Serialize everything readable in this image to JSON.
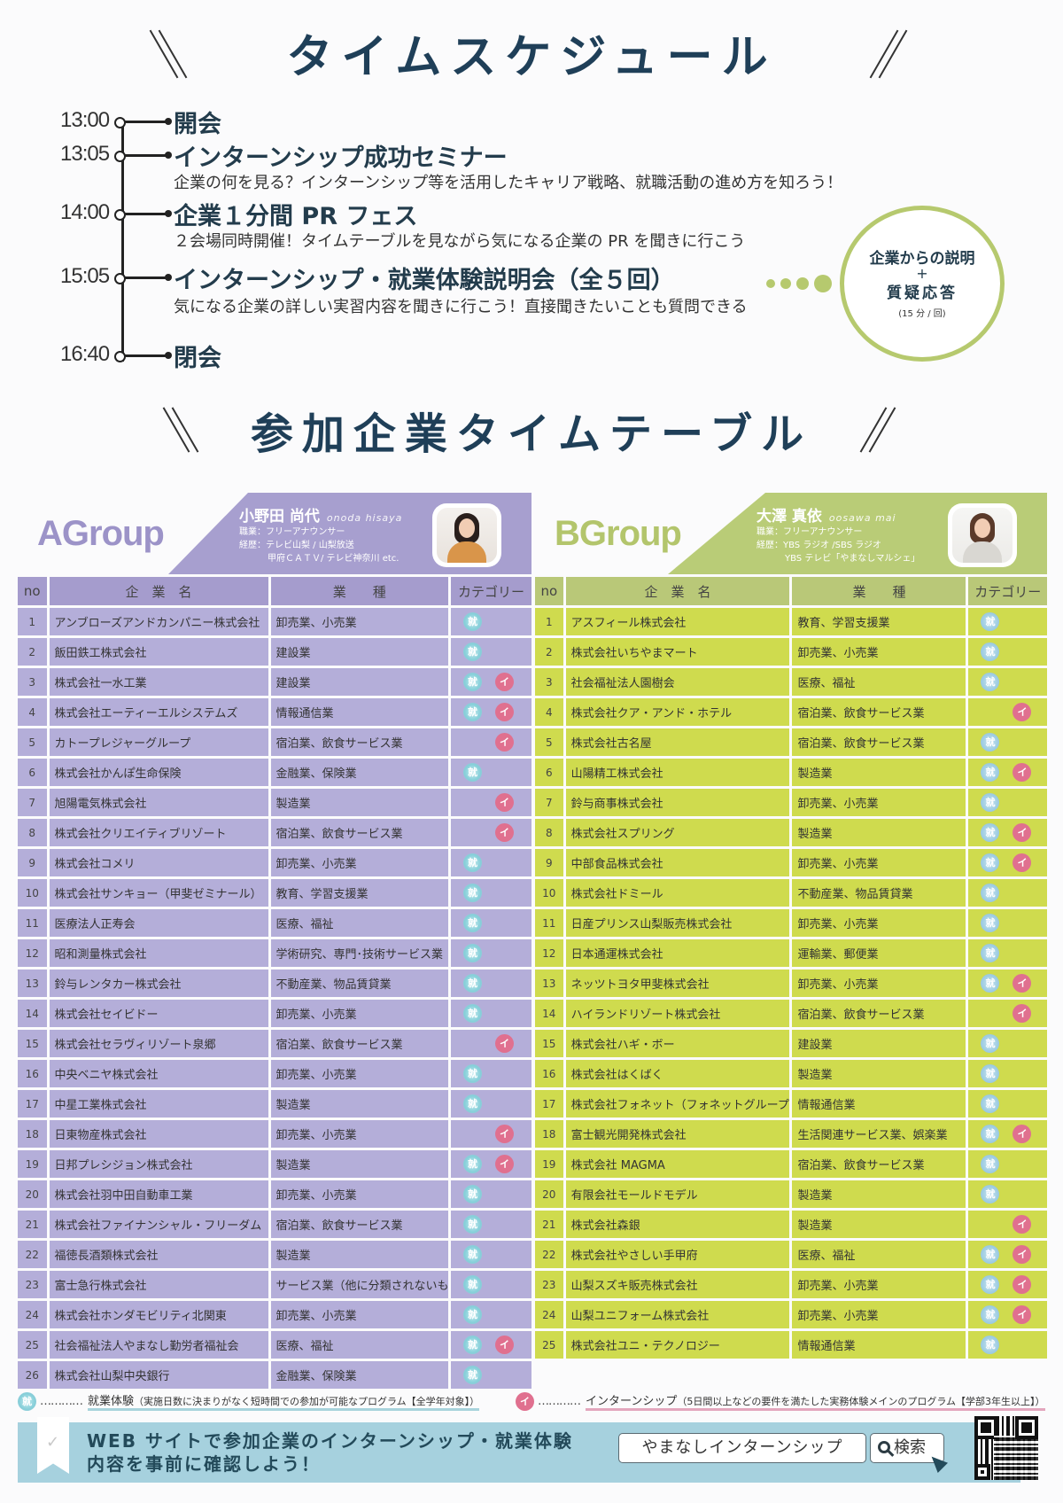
{
  "schedule_title": "タイムスケジュール",
  "schedule": [
    {
      "time": "13:00",
      "title": "開会",
      "desc": "",
      "highlight": ""
    },
    {
      "time": "13:05",
      "title": "インターンシップ成功セミナー",
      "desc": "企業の何を見る？インターンシップ等を活用したキャリア戦略、就職活動の進め方を知ろう！",
      "highlight": "blue"
    },
    {
      "time": "14:00",
      "title": "企業１分間 PR フェス",
      "desc": "２会場同時開催！タイムテーブルを見ながら気になる企業の PR を聞きに行こう",
      "highlight": "blue"
    },
    {
      "time": "15:05",
      "title": "インターンシップ・就業体験説明会（全５回）",
      "desc": "気になる企業の詳しい実習内容を聞きに行こう！直接聞きたいことも質問できる",
      "highlight": "green"
    },
    {
      "time": "16:40",
      "title": "閉会",
      "desc": "",
      "highlight": ""
    }
  ],
  "bubble": {
    "line1": "企業からの説明",
    "plus": "+",
    "line2": "質疑応答",
    "note": "(15 分 / 回)"
  },
  "timetable_title": "参加企業タイムテーブル",
  "colors": {
    "title": "#1f3f58",
    "group_a": "#a79fcf",
    "group_a_cell": "#b4aed9",
    "group_b": "#b9cc77",
    "group_b_cell": "#cfdb4e",
    "icon_shugyo": "#86cfd9",
    "icon_intern": "#e0708f",
    "banner": "#a6d1de"
  },
  "table_headers": {
    "no": "no",
    "company": "企　業　名",
    "industry": "業　　種",
    "category": "カテゴリー"
  },
  "icons": {
    "shugyo": "就",
    "intern": "イ"
  },
  "group_a": {
    "name": "AGroup",
    "host": {
      "name": "小野田 尚代",
      "romaji": "onoda hisaya",
      "job": "職業：フリーアナウンサー",
      "career1": "経歴：テレビ山梨 / 山梨放送",
      "career2": "甲府ＣＡＴＶ/ テレビ神奈川 etc."
    },
    "rows": [
      {
        "no": "1",
        "company": "アンブローズアンドカンパニー株式会社",
        "industry": "卸売業、小売業",
        "shugyo": true,
        "intern": false
      },
      {
        "no": "2",
        "company": "飯田鉄工株式会社",
        "industry": "建設業",
        "shugyo": true,
        "intern": false
      },
      {
        "no": "3",
        "company": "株式会社一水工業",
        "industry": "建設業",
        "shugyo": true,
        "intern": true
      },
      {
        "no": "4",
        "company": "株式会社エーティーエルシステムズ",
        "industry": "情報通信業",
        "shugyo": true,
        "intern": true
      },
      {
        "no": "5",
        "company": "カトープレジャーグループ",
        "industry": "宿泊業、飲食サービス業",
        "shugyo": false,
        "intern": true
      },
      {
        "no": "6",
        "company": "株式会社かんぽ生命保険",
        "industry": "金融業、保険業",
        "shugyo": true,
        "intern": false
      },
      {
        "no": "7",
        "company": "旭陽電気株式会社",
        "industry": "製造業",
        "shugyo": false,
        "intern": true
      },
      {
        "no": "8",
        "company": "株式会社クリエイティブリゾート",
        "industry": "宿泊業、飲食サービス業",
        "shugyo": false,
        "intern": true
      },
      {
        "no": "9",
        "company": "株式会社コメリ",
        "industry": "卸売業、小売業",
        "shugyo": true,
        "intern": false
      },
      {
        "no": "10",
        "company": "株式会社サンキョー（甲斐ゼミナール）",
        "industry": "教育、学習支援業",
        "shugyo": true,
        "intern": false
      },
      {
        "no": "11",
        "company": "医療法人正寿会",
        "industry": "医療、福祉",
        "shugyo": true,
        "intern": false
      },
      {
        "no": "12",
        "company": "昭和測量株式会社",
        "industry": "学術研究、専門･技術サービス業",
        "shugyo": true,
        "intern": false
      },
      {
        "no": "13",
        "company": "鈴与レンタカー株式会社",
        "industry": "不動産業、物品賃貸業",
        "shugyo": true,
        "intern": false
      },
      {
        "no": "14",
        "company": "株式会社セイビドー",
        "industry": "卸売業、小売業",
        "shugyo": true,
        "intern": false
      },
      {
        "no": "15",
        "company": "株式会社セラヴィリゾート泉郷",
        "industry": "宿泊業、飲食サービス業",
        "shugyo": false,
        "intern": true
      },
      {
        "no": "16",
        "company": "中央ベニヤ株式会社",
        "industry": "卸売業、小売業",
        "shugyo": true,
        "intern": false
      },
      {
        "no": "17",
        "company": "中星工業株式会社",
        "industry": "製造業",
        "shugyo": true,
        "intern": false
      },
      {
        "no": "18",
        "company": "日東物産株式会社",
        "industry": "卸売業、小売業",
        "shugyo": false,
        "intern": true
      },
      {
        "no": "19",
        "company": "日邦プレシジョン株式会社",
        "industry": "製造業",
        "shugyo": true,
        "intern": true
      },
      {
        "no": "20",
        "company": "株式会社羽中田自動車工業",
        "industry": "卸売業、小売業",
        "shugyo": true,
        "intern": false
      },
      {
        "no": "21",
        "company": "株式会社ファイナンシャル・フリーダム",
        "industry": "宿泊業、飲食サービス業",
        "shugyo": true,
        "intern": false
      },
      {
        "no": "22",
        "company": "福徳長酒類株式会社",
        "industry": "製造業",
        "shugyo": true,
        "intern": false
      },
      {
        "no": "23",
        "company": "富士急行株式会社",
        "industry": "サービス業（他に分類されないもの）",
        "shugyo": true,
        "intern": false
      },
      {
        "no": "24",
        "company": "株式会社ホンダモビリティ北関東",
        "industry": "卸売業、小売業",
        "shugyo": true,
        "intern": false
      },
      {
        "no": "25",
        "company": "社会福祉法人やまなし勤労者福祉会",
        "industry": "医療、福祉",
        "shugyo": true,
        "intern": true
      },
      {
        "no": "26",
        "company": "株式会社山梨中央銀行",
        "industry": "金融業、保険業",
        "shugyo": true,
        "intern": false
      }
    ]
  },
  "group_b": {
    "name": "BGroup",
    "host": {
      "name": "大澤 真依",
      "romaji": "oosawa mai",
      "job": "職業：フリーアナウンサー",
      "career1": "経歴：YBS ラジオ /SBS ラジオ",
      "career2": "YBS テレビ「やまなしマルシェ」"
    },
    "rows": [
      {
        "no": "1",
        "company": "アスフィール株式会社",
        "industry": "教育、学習支援業",
        "shugyo": true,
        "intern": false
      },
      {
        "no": "2",
        "company": "株式会社いちやまマート",
        "industry": "卸売業、小売業",
        "shugyo": true,
        "intern": false
      },
      {
        "no": "3",
        "company": "社会福祉法人園樹会",
        "industry": "医療、福祉",
        "shugyo": true,
        "intern": false
      },
      {
        "no": "4",
        "company": "株式会社クア・アンド・ホテル",
        "industry": "宿泊業、飲食サービス業",
        "shugyo": false,
        "intern": true
      },
      {
        "no": "5",
        "company": "株式会社古名屋",
        "industry": "宿泊業、飲食サービス業",
        "shugyo": true,
        "intern": false
      },
      {
        "no": "6",
        "company": "山陽精工株式会社",
        "industry": "製造業",
        "shugyo": true,
        "intern": true
      },
      {
        "no": "7",
        "company": "鈴与商事株式会社",
        "industry": "卸売業、小売業",
        "shugyo": true,
        "intern": false
      },
      {
        "no": "8",
        "company": "株式会社スプリング",
        "industry": "製造業",
        "shugyo": true,
        "intern": true
      },
      {
        "no": "9",
        "company": "中部食品株式会社",
        "industry": "卸売業、小売業",
        "shugyo": true,
        "intern": true
      },
      {
        "no": "10",
        "company": "株式会社ドミール",
        "industry": "不動産業、物品賃貸業",
        "shugyo": true,
        "intern": false
      },
      {
        "no": "11",
        "company": "日産プリンス山梨販売株式会社",
        "industry": "卸売業、小売業",
        "shugyo": true,
        "intern": false
      },
      {
        "no": "12",
        "company": "日本通運株式会社",
        "industry": "運輸業、郵便業",
        "shugyo": true,
        "intern": false
      },
      {
        "no": "13",
        "company": "ネッツトヨタ甲斐株式会社",
        "industry": "卸売業、小売業",
        "shugyo": true,
        "intern": true
      },
      {
        "no": "14",
        "company": "ハイランドリゾート株式会社",
        "industry": "宿泊業、飲食サービス業",
        "shugyo": false,
        "intern": true
      },
      {
        "no": "15",
        "company": "株式会社ハギ・ボー",
        "industry": "建設業",
        "shugyo": true,
        "intern": false
      },
      {
        "no": "16",
        "company": "株式会社はくばく",
        "industry": "製造業",
        "shugyo": true,
        "intern": false
      },
      {
        "no": "17",
        "company": "株式会社フォネット（フォネットグループ）",
        "industry": "情報通信業",
        "shugyo": true,
        "intern": false
      },
      {
        "no": "18",
        "company": "富士観光開発株式会社",
        "industry": "生活関連サービス業、娯楽業",
        "shugyo": true,
        "intern": true
      },
      {
        "no": "19",
        "company": "株式会社 MAGMA",
        "industry": "宿泊業、飲食サービス業",
        "shugyo": true,
        "intern": false
      },
      {
        "no": "20",
        "company": "有限会社モールドモデル",
        "industry": "製造業",
        "shugyo": true,
        "intern": false
      },
      {
        "no": "21",
        "company": "株式会社森銀",
        "industry": "製造業",
        "shugyo": false,
        "intern": true
      },
      {
        "no": "22",
        "company": "株式会社やさしい手甲府",
        "industry": "医療、福祉",
        "shugyo": true,
        "intern": true
      },
      {
        "no": "23",
        "company": "山梨スズキ販売株式会社",
        "industry": "卸売業、小売業",
        "shugyo": true,
        "intern": true
      },
      {
        "no": "24",
        "company": "山梨ユニフォーム株式会社",
        "industry": "卸売業、小売業",
        "shugyo": true,
        "intern": true
      },
      {
        "no": "25",
        "company": "株式会社ユニ・テクノロジー",
        "industry": "情報通信業",
        "shugyo": true,
        "intern": false
      }
    ]
  },
  "legend": {
    "leader": "…………",
    "shugyo_label": "就業体験",
    "shugyo_note": "（実施日数に決まりがなく短時間での参加が可能なプログラム【全学年対象】）",
    "intern_label": "インターンシップ",
    "intern_note": "（5日間以上などの要件を満たした実務体験メインのプログラム【学部3年生以上】）"
  },
  "banner": {
    "line1": "WEB サイトで参加企業のインターンシップ・就業体験",
    "line2": "内容を事前に確認しよう！",
    "check": "✓",
    "search_value": "やまなしインターンシップ",
    "search_button": "検索"
  }
}
